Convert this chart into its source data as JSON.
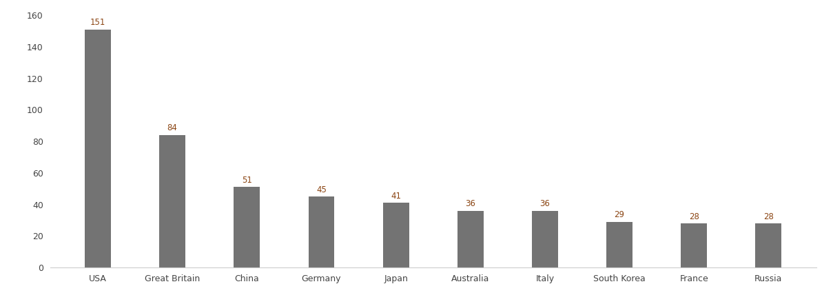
{
  "categories": [
    "USA",
    "Great Britain",
    "China",
    "Germany",
    "Japan",
    "Australia",
    "Italy",
    "South Korea",
    "France",
    "Russia"
  ],
  "values": [
    151,
    84,
    51,
    45,
    41,
    36,
    36,
    29,
    28,
    28
  ],
  "bar_color": "#737373",
  "label_color": "#8B4513",
  "background_color": "#ffffff",
  "ylim": [
    0,
    160
  ],
  "yticks": [
    0,
    20,
    40,
    60,
    80,
    100,
    120,
    140,
    160
  ],
  "bar_width": 0.35,
  "label_fontsize": 8.5,
  "tick_fontsize": 9.0
}
